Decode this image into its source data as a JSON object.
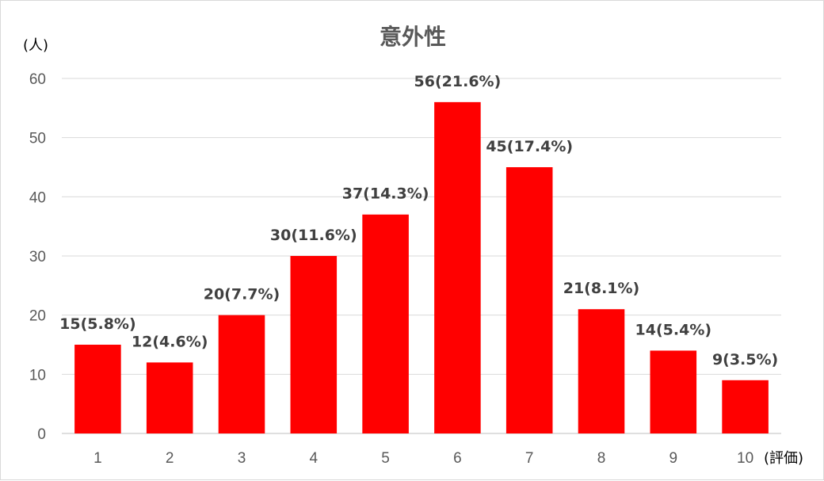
{
  "chart_data": {
    "type": "bar",
    "title": "意外性",
    "ylabel": "(人)",
    "xlabel": "(評価)",
    "categories": [
      "1",
      "2",
      "3",
      "4",
      "5",
      "6",
      "7",
      "8",
      "9",
      "10"
    ],
    "values": [
      15,
      12,
      20,
      30,
      37,
      56,
      45,
      21,
      14,
      9
    ],
    "data_labels": [
      "15(5.8%)",
      "12(4.6%)",
      "20(7.7%)",
      "30(11.6%)",
      "37(14.3%)",
      "56(21.6%)",
      "45(17.4%)",
      "21(8.1%)",
      "14(5.4%)",
      "9(3.5%)"
    ],
    "ylim": [
      0,
      60
    ],
    "yticks": [
      "0",
      "10",
      "20",
      "30",
      "40",
      "50",
      "60"
    ],
    "bar_color": "#ff0000",
    "grid": true,
    "legend": "none"
  }
}
